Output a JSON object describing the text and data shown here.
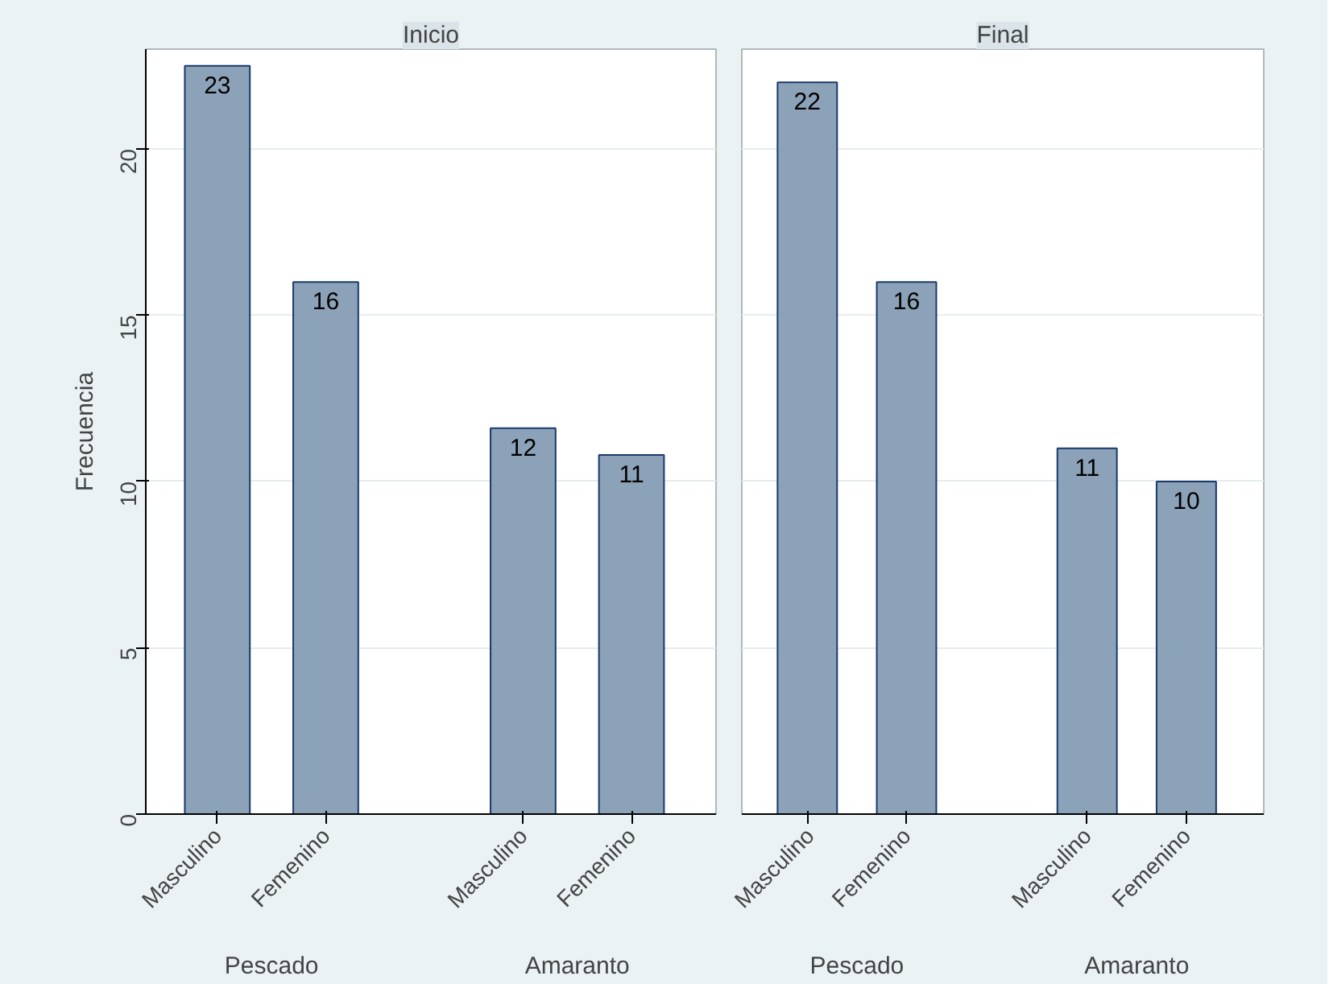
{
  "chart_data": [
    {
      "type": "bar",
      "title": "Inicio",
      "ylabel": "Frecuencia",
      "categories": [
        "Masculino",
        "Femenino",
        "Masculino",
        "Femenino"
      ],
      "values": [
        22.5,
        16,
        11.6,
        10.8
      ],
      "value_labels": [
        "23",
        "16",
        "12",
        "11"
      ],
      "color": "#8ca2b8",
      "ylim": [
        0,
        23
      ],
      "yticks": [
        0,
        5,
        10,
        15,
        20
      ],
      "grid": "y",
      "annotations": [
        "Pescado",
        "Amaranto"
      ]
    },
    {
      "type": "bar",
      "title": "Final",
      "categories": [
        "Masculino",
        "Femenino",
        "Masculino",
        "Femenino"
      ],
      "values": [
        22,
        16,
        11,
        10
      ],
      "value_labels": [
        "22",
        "16",
        "11",
        "10"
      ],
      "color": "#8ca2b8",
      "ylim": [
        0,
        23
      ],
      "yticks": [
        0,
        5,
        10,
        15,
        20
      ],
      "grid": "y",
      "tick_labels": "x",
      "annotations": [
        "Pescado",
        "Amaranto"
      ]
    }
  ]
}
